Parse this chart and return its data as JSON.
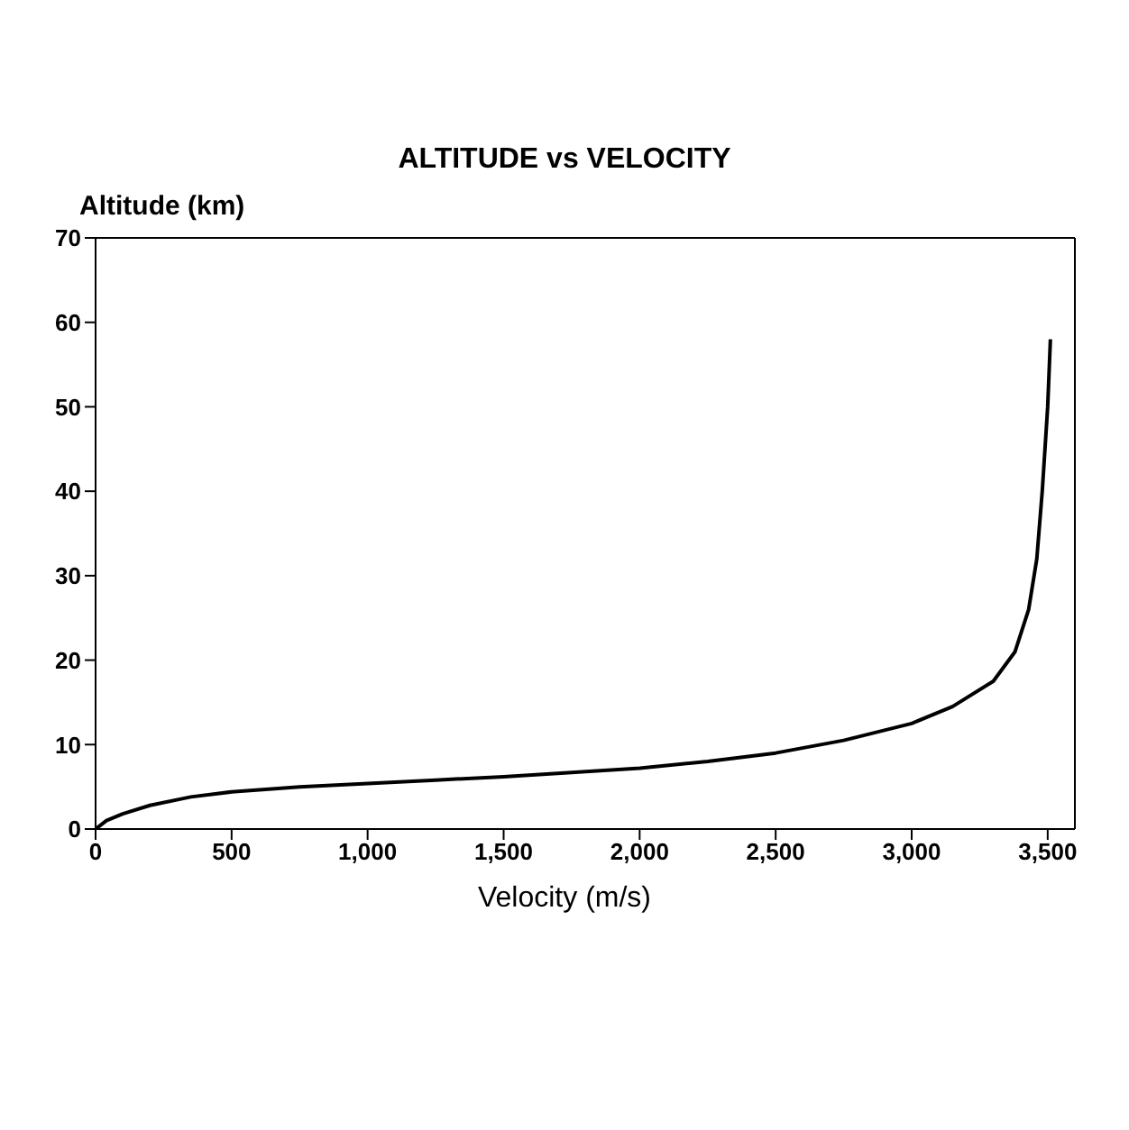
{
  "chart_data": {
    "type": "line",
    "title": "ALTITUDE vs VELOCITY",
    "xlabel": "Velocity (m/s)",
    "ylabel": "Altitude (km)",
    "x": [
      0,
      40,
      100,
      200,
      350,
      500,
      750,
      1000,
      1250,
      1500,
      1750,
      2000,
      2250,
      2500,
      2750,
      3000,
      3150,
      3300,
      3380,
      3430,
      3460,
      3480,
      3500,
      3510
    ],
    "series": [
      {
        "color": "#000000",
        "values": [
          0,
          1,
          1.8,
          2.8,
          3.8,
          4.4,
          5,
          5.4,
          5.8,
          6.2,
          6.7,
          7.2,
          8,
          9,
          10.5,
          12.5,
          14.5,
          17.5,
          21,
          26,
          32,
          40,
          50,
          58
        ]
      }
    ],
    "xlim": [
      0,
      3600
    ],
    "xticks": [
      {
        "value": 0,
        "label": "0"
      },
      {
        "value": 500,
        "label": "500"
      },
      {
        "value": 1000,
        "label": "1,000"
      },
      {
        "value": 1500,
        "label": "1,500"
      },
      {
        "value": 2000,
        "label": "2,000"
      },
      {
        "value": 2500,
        "label": "2,500"
      },
      {
        "value": 3000,
        "label": "3,000"
      },
      {
        "value": 3500,
        "label": "3,500"
      }
    ],
    "ylim": [
      0,
      70
    ],
    "yticks": [
      0,
      10,
      20,
      30,
      40,
      50,
      60,
      70
    ],
    "grid": false,
    "legend": false,
    "marker": "none",
    "line_style": "solid"
  }
}
